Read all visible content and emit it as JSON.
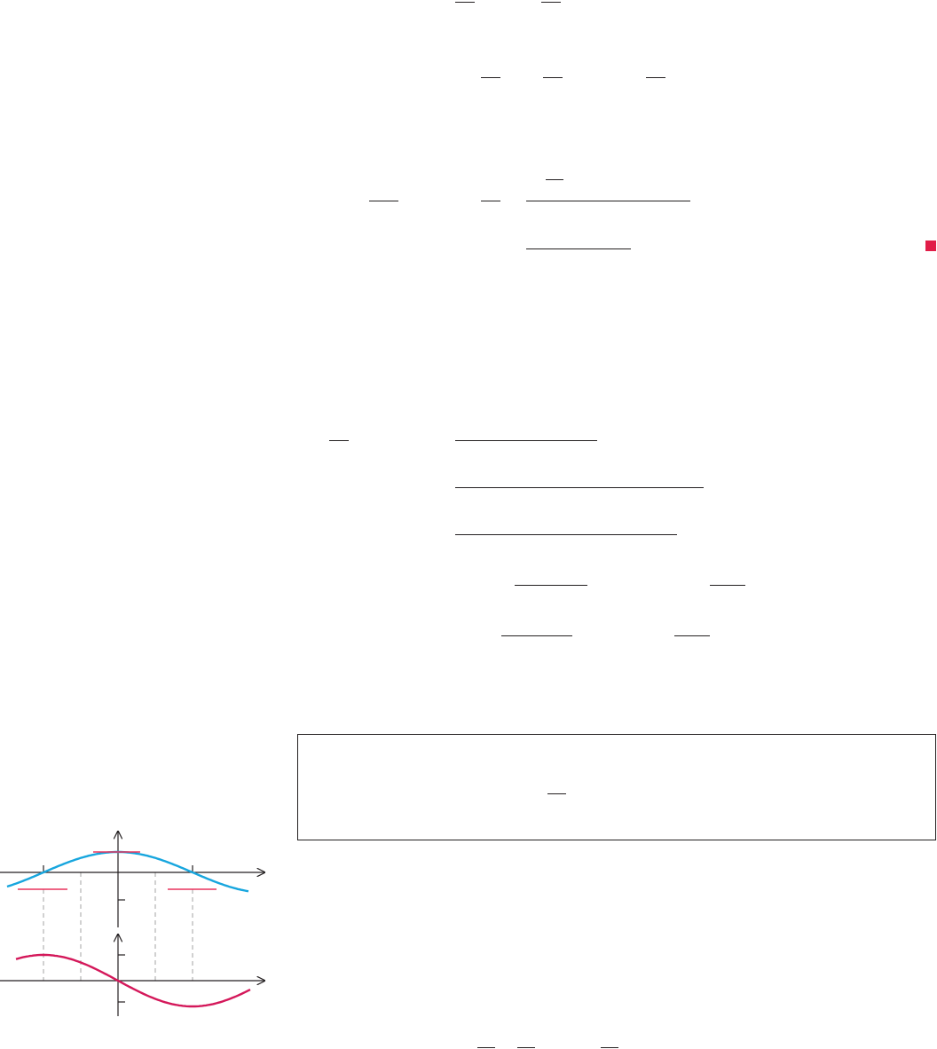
{
  "colors": {
    "ink": "#231f20",
    "end_marker": "#e11d48",
    "curve_blue": "#18a6de",
    "curve_red": "#d4185a",
    "tangent": "#e8335d",
    "guide": "#a3a3a3",
    "box_border": "#231f20"
  },
  "figure": {
    "top_graph": "cosine-curve",
    "bottom_graph": "negative-sine-curve"
  }
}
